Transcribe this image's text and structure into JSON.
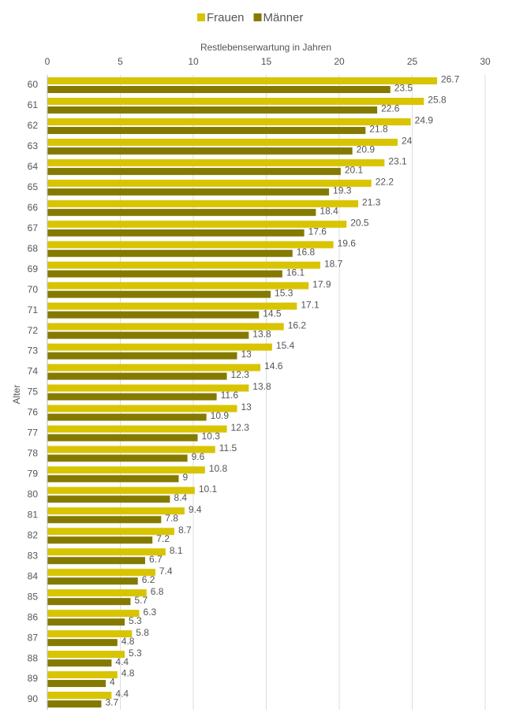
{
  "chart_data": {
    "type": "hbar",
    "x_label": "Restlebenserwartung in Jahren",
    "y_label": "Alter",
    "categories": [
      "60",
      "61",
      "62",
      "63",
      "64",
      "65",
      "66",
      "67",
      "68",
      "69",
      "70",
      "71",
      "72",
      "73",
      "74",
      "75",
      "76",
      "77",
      "78",
      "79",
      "80",
      "81",
      "82",
      "83",
      "84",
      "85",
      "86",
      "87",
      "88",
      "89",
      "90"
    ],
    "series": [
      {
        "name": "Frauen",
        "color": "#d8c400",
        "values": [
          26.7,
          25.8,
          24.9,
          24,
          23.1,
          22.2,
          21.3,
          20.5,
          19.6,
          18.7,
          17.9,
          17.1,
          16.2,
          15.4,
          14.6,
          13.8,
          13,
          12.3,
          11.5,
          10.8,
          10.1,
          9.4,
          8.7,
          8.1,
          7.4,
          6.8,
          6.3,
          5.8,
          5.3,
          4.8,
          4.4
        ]
      },
      {
        "name": "Männer",
        "color": "#847a00",
        "values": [
          23.5,
          22.6,
          21.8,
          20.9,
          20.1,
          19.3,
          18.4,
          17.6,
          16.8,
          16.1,
          15.3,
          14.5,
          13.8,
          13,
          12.3,
          11.6,
          10.9,
          10.3,
          9.6,
          9,
          8.4,
          7.8,
          7.2,
          6.7,
          6.2,
          5.7,
          5.3,
          4.8,
          4.4,
          4,
          3.7
        ]
      }
    ],
    "xlim": [
      0,
      30
    ],
    "xticks": [
      0,
      5,
      10,
      15,
      20,
      25,
      30
    ],
    "grid": true,
    "legend": "top"
  }
}
